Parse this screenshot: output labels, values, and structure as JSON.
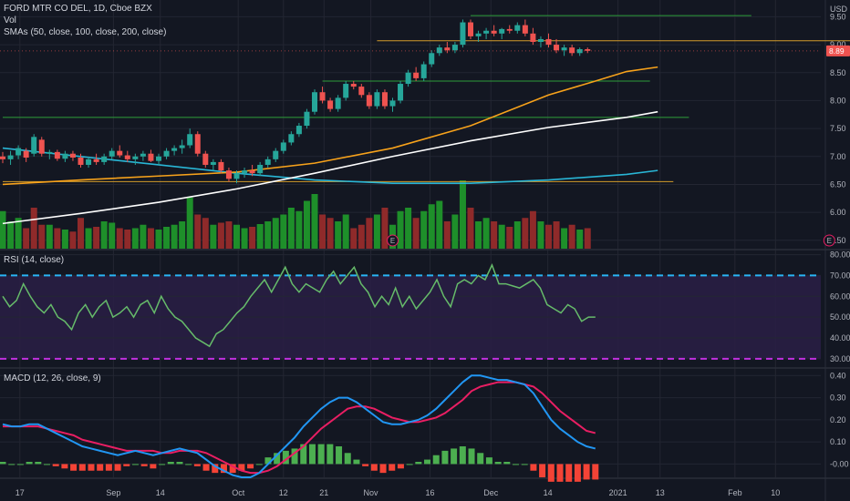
{
  "header": {
    "title": "FORD MTR CO DEL, 1D, Cboe BZX",
    "vol_label": "Vol",
    "sma_label": "SMAs (50, close, 100, close, 200, close)",
    "currency": "USD",
    "last_price": "8.89"
  },
  "panes": {
    "rsi_label": "RSI (14, close)",
    "macd_label": "MACD (12, 26, close, 9)"
  },
  "colors": {
    "background": "#131722",
    "grid": "#232632",
    "up": "#26a69a",
    "up_candle": "#26a69a",
    "down_candle": "#ef5350",
    "vol_up": "#1e8f2a",
    "vol_down": "#8f2a2a",
    "sma50": "#f7a21b",
    "sma100": "#ffffff",
    "sma200": "#29b6d6",
    "rsi_line": "#66bb6a",
    "rsi_band": "#2a1f45",
    "rsi_upper": "#29b6f6",
    "rsi_lower": "#c030e0",
    "macd_line": "#2196f3",
    "signal_line": "#e91e63",
    "hist_pos": "#4caf50",
    "hist_neg": "#f44336",
    "hline_green": "#2e9e3a",
    "hline_orange": "#d39b2a",
    "earnings": "#e91e63"
  },
  "chart_data": [
    {
      "type": "candlestick",
      "pane": "price",
      "title": "FORD MTR CO DEL, 1D, Cboe BZX",
      "x_tick_labels": [
        "17",
        "Sep",
        "14",
        "Oct",
        "12",
        "21",
        "Nov",
        "16",
        "Dec",
        "14",
        "2021",
        "13",
        "Feb",
        "10"
      ],
      "y_tick_labels": [
        "5.50",
        "6.00",
        "6.50",
        "7.00",
        "7.50",
        "8.00",
        "8.50",
        "9.00",
        "9.50"
      ],
      "ylim": [
        5.35,
        9.8
      ],
      "ohlc": [
        [
          7.0,
          7.08,
          6.88,
          6.95
        ],
        [
          6.95,
          7.1,
          6.85,
          7.02
        ],
        [
          7.02,
          7.2,
          6.95,
          7.15
        ],
        [
          7.1,
          7.15,
          6.9,
          6.98
        ],
        [
          7.05,
          7.4,
          7.0,
          7.35
        ],
        [
          7.3,
          7.35,
          7.0,
          7.05
        ],
        [
          7.05,
          7.12,
          6.95,
          7.08
        ],
        [
          7.08,
          7.12,
          6.92,
          6.96
        ],
        [
          6.96,
          7.1,
          6.9,
          7.05
        ],
        [
          7.05,
          7.1,
          6.92,
          6.98
        ],
        [
          6.98,
          7.05,
          6.8,
          6.85
        ],
        [
          6.85,
          7.0,
          6.8,
          6.95
        ],
        [
          6.95,
          7.05,
          6.85,
          6.9
        ],
        [
          6.9,
          7.05,
          6.85,
          7.0
        ],
        [
          7.0,
          7.15,
          6.95,
          7.1
        ],
        [
          7.1,
          7.2,
          6.98,
          7.02
        ],
        [
          7.02,
          7.1,
          6.9,
          6.95
        ],
        [
          6.95,
          7.05,
          6.85,
          7.0
        ],
        [
          7.0,
          7.1,
          6.92,
          7.05
        ],
        [
          7.05,
          7.12,
          6.9,
          6.92
        ],
        [
          6.92,
          7.05,
          6.85,
          7.0
        ],
        [
          7.0,
          7.15,
          6.95,
          7.1
        ],
        [
          7.1,
          7.2,
          7.02,
          7.15
        ],
        [
          7.15,
          7.3,
          7.05,
          7.2
        ],
        [
          7.2,
          7.5,
          7.15,
          7.4
        ],
        [
          7.4,
          7.45,
          7.0,
          7.05
        ],
        [
          7.05,
          7.1,
          6.8,
          6.85
        ],
        [
          6.85,
          6.95,
          6.75,
          6.9
        ],
        [
          6.9,
          6.95,
          6.7,
          6.75
        ],
        [
          6.75,
          6.8,
          6.55,
          6.6
        ],
        [
          6.6,
          6.75,
          6.52,
          6.7
        ],
        [
          6.7,
          6.8,
          6.62,
          6.75
        ],
        [
          6.75,
          6.85,
          6.65,
          6.7
        ],
        [
          6.7,
          6.9,
          6.65,
          6.85
        ],
        [
          6.85,
          7.0,
          6.8,
          6.95
        ],
        [
          6.95,
          7.15,
          6.9,
          7.1
        ],
        [
          7.1,
          7.3,
          7.05,
          7.25
        ],
        [
          7.25,
          7.45,
          7.2,
          7.4
        ],
        [
          7.4,
          7.6,
          7.35,
          7.55
        ],
        [
          7.55,
          7.85,
          7.5,
          7.8
        ],
        [
          7.8,
          8.2,
          7.75,
          8.15
        ],
        [
          8.15,
          8.25,
          7.95,
          8.0
        ],
        [
          8.0,
          8.05,
          7.8,
          7.85
        ],
        [
          7.85,
          8.1,
          7.8,
          8.05
        ],
        [
          8.05,
          8.35,
          8.0,
          8.3
        ],
        [
          8.3,
          8.35,
          8.2,
          8.25
        ],
        [
          8.25,
          8.3,
          8.05,
          8.1
        ],
        [
          8.1,
          8.15,
          7.85,
          7.9
        ],
        [
          7.9,
          8.2,
          7.85,
          8.15
        ],
        [
          8.15,
          8.2,
          7.85,
          7.9
        ],
        [
          7.9,
          8.05,
          7.8,
          8.0
        ],
        [
          8.0,
          8.35,
          7.95,
          8.3
        ],
        [
          8.3,
          8.55,
          8.25,
          8.5
        ],
        [
          8.5,
          8.6,
          8.35,
          8.4
        ],
        [
          8.4,
          8.7,
          8.35,
          8.65
        ],
        [
          8.65,
          8.9,
          8.6,
          8.85
        ],
        [
          8.85,
          9.0,
          8.8,
          8.95
        ],
        [
          8.95,
          9.05,
          8.85,
          8.9
        ],
        [
          8.9,
          9.05,
          8.85,
          9.0
        ],
        [
          9.0,
          9.45,
          8.95,
          9.4
        ],
        [
          9.4,
          9.45,
          9.1,
          9.15
        ],
        [
          9.15,
          9.25,
          9.05,
          9.2
        ],
        [
          9.2,
          9.3,
          9.1,
          9.25
        ],
        [
          9.25,
          9.35,
          9.15,
          9.2
        ],
        [
          9.2,
          9.3,
          9.1,
          9.28
        ],
        [
          9.28,
          9.35,
          9.2,
          9.25
        ],
        [
          9.25,
          9.4,
          9.2,
          9.35
        ],
        [
          9.35,
          9.45,
          9.15,
          9.2
        ],
        [
          9.2,
          9.3,
          9.0,
          9.05
        ],
        [
          9.05,
          9.15,
          8.95,
          9.1
        ],
        [
          9.1,
          9.2,
          8.95,
          9.0
        ],
        [
          9.0,
          9.1,
          8.85,
          8.9
        ],
        [
          8.9,
          9.0,
          8.8,
          8.95
        ],
        [
          8.95,
          9.0,
          8.8,
          8.85
        ],
        [
          8.85,
          8.95,
          8.8,
          8.92
        ],
        [
          8.92,
          8.95,
          8.85,
          8.89
        ]
      ],
      "volume": [
        [
          0.55,
          1
        ],
        [
          0.4,
          1
        ],
        [
          0.45,
          1
        ],
        [
          0.3,
          0
        ],
        [
          0.6,
          0
        ],
        [
          0.35,
          0
        ],
        [
          0.35,
          1
        ],
        [
          0.3,
          0
        ],
        [
          0.28,
          1
        ],
        [
          0.25,
          0
        ],
        [
          0.45,
          0
        ],
        [
          0.3,
          1
        ],
        [
          0.32,
          0
        ],
        [
          0.4,
          1
        ],
        [
          0.38,
          1
        ],
        [
          0.3,
          0
        ],
        [
          0.28,
          0
        ],
        [
          0.3,
          1
        ],
        [
          0.35,
          1
        ],
        [
          0.3,
          0
        ],
        [
          0.28,
          1
        ],
        [
          0.32,
          1
        ],
        [
          0.35,
          1
        ],
        [
          0.4,
          1
        ],
        [
          0.75,
          1
        ],
        [
          0.5,
          0
        ],
        [
          0.45,
          0
        ],
        [
          0.35,
          1
        ],
        [
          0.38,
          0
        ],
        [
          0.4,
          0
        ],
        [
          0.35,
          1
        ],
        [
          0.3,
          1
        ],
        [
          0.32,
          0
        ],
        [
          0.36,
          1
        ],
        [
          0.4,
          1
        ],
        [
          0.45,
          1
        ],
        [
          0.5,
          1
        ],
        [
          0.6,
          1
        ],
        [
          0.55,
          1
        ],
        [
          0.7,
          1
        ],
        [
          0.8,
          1
        ],
        [
          0.5,
          0
        ],
        [
          0.45,
          0
        ],
        [
          0.4,
          1
        ],
        [
          0.5,
          1
        ],
        [
          0.3,
          0
        ],
        [
          0.35,
          0
        ],
        [
          0.45,
          0
        ],
        [
          0.5,
          1
        ],
        [
          0.6,
          0
        ],
        [
          0.35,
          1
        ],
        [
          0.55,
          1
        ],
        [
          0.6,
          1
        ],
        [
          0.45,
          0
        ],
        [
          0.55,
          1
        ],
        [
          0.65,
          1
        ],
        [
          0.7,
          1
        ],
        [
          0.4,
          0
        ],
        [
          0.5,
          1
        ],
        [
          1.0,
          1
        ],
        [
          0.6,
          0
        ],
        [
          0.4,
          1
        ],
        [
          0.45,
          1
        ],
        [
          0.4,
          0
        ],
        [
          0.35,
          1
        ],
        [
          0.32,
          0
        ],
        [
          0.4,
          1
        ],
        [
          0.45,
          0
        ],
        [
          0.55,
          0
        ],
        [
          0.4,
          1
        ],
        [
          0.35,
          0
        ],
        [
          0.4,
          0
        ],
        [
          0.3,
          1
        ],
        [
          0.35,
          0
        ],
        [
          0.28,
          1
        ],
        [
          0.3,
          0
        ]
      ],
      "sma50": [
        [
          0,
          6.5
        ],
        [
          10,
          6.58
        ],
        [
          20,
          6.65
        ],
        [
          30,
          6.72
        ],
        [
          40,
          6.88
        ],
        [
          50,
          7.15
        ],
        [
          60,
          7.55
        ],
        [
          70,
          8.1
        ],
        [
          76,
          8.35
        ],
        [
          80,
          8.52
        ],
        [
          84,
          8.6
        ]
      ],
      "sma100": [
        [
          0,
          5.8
        ],
        [
          10,
          5.98
        ],
        [
          20,
          6.18
        ],
        [
          30,
          6.42
        ],
        [
          40,
          6.7
        ],
        [
          50,
          7.0
        ],
        [
          60,
          7.28
        ],
        [
          70,
          7.52
        ],
        [
          80,
          7.7
        ],
        [
          84,
          7.8
        ]
      ],
      "sma200": [
        [
          0,
          7.15
        ],
        [
          10,
          7.0
        ],
        [
          20,
          6.85
        ],
        [
          30,
          6.7
        ],
        [
          40,
          6.58
        ],
        [
          50,
          6.52
        ],
        [
          60,
          6.52
        ],
        [
          70,
          6.58
        ],
        [
          80,
          6.68
        ],
        [
          84,
          6.75
        ]
      ],
      "horizontal_lines": [
        {
          "level": 9.52,
          "from": 60,
          "to": 96,
          "color": "hline_green"
        },
        {
          "level": 9.07,
          "from": 48,
          "to": 114,
          "color": "hline_orange"
        },
        {
          "level": 8.35,
          "from": 41,
          "to": 83,
          "color": "hline_green"
        },
        {
          "level": 7.7,
          "from": 0,
          "to": 88,
          "color": "hline_green"
        },
        {
          "level": 6.55,
          "from": 0,
          "to": 86,
          "color": "hline_orange"
        }
      ],
      "earnings_markers": [
        {
          "index": 50,
          "label": "E"
        },
        {
          "index": 106,
          "label": "E"
        }
      ]
    },
    {
      "type": "line",
      "pane": "rsi",
      "title": "RSI (14, close)",
      "y_tick_labels": [
        "30.00",
        "40.00",
        "50.00",
        "60.00",
        "70.00",
        "80.00"
      ],
      "ylim": [
        26,
        82
      ],
      "upper_band": 70,
      "lower_band": 30,
      "values": [
        60,
        55,
        58,
        66,
        60,
        55,
        52,
        56,
        50,
        48,
        44,
        52,
        56,
        50,
        55,
        58,
        50,
        52,
        55,
        50,
        56,
        58,
        52,
        60,
        54,
        50,
        48,
        44,
        40,
        38,
        36,
        42,
        44,
        48,
        52,
        55,
        60,
        64,
        68,
        62,
        68,
        74,
        66,
        62,
        66,
        64,
        62,
        68,
        72,
        66,
        70,
        74,
        66,
        62,
        55,
        60,
        56,
        64,
        55,
        60,
        54,
        58,
        62,
        68,
        60,
        55,
        66,
        68,
        66,
        70,
        68,
        75,
        66,
        66,
        65,
        64,
        66,
        68,
        64,
        56,
        54,
        52,
        56,
        54,
        48,
        50,
        50
      ],
      "values_note": ""
    },
    {
      "type": "line",
      "pane": "macd",
      "title": "MACD (12, 26, close, 9)",
      "y_tick_labels": [
        "-0.00",
        "0.10",
        "0.20",
        "0.30",
        "0.40"
      ],
      "ylim": [
        -0.06,
        0.43
      ],
      "series": [
        {
          "name": "MACD",
          "values": [
            0.18,
            0.17,
            0.17,
            0.18,
            0.18,
            0.16,
            0.14,
            0.12,
            0.1,
            0.08,
            0.07,
            0.06,
            0.05,
            0.04,
            0.05,
            0.06,
            0.05,
            0.04,
            0.05,
            0.06,
            0.07,
            0.06,
            0.05,
            0.02,
            -0.01,
            -0.03,
            -0.05,
            -0.06,
            -0.06,
            -0.04,
            0.0,
            0.04,
            0.08,
            0.12,
            0.17,
            0.21,
            0.25,
            0.28,
            0.3,
            0.3,
            0.28,
            0.25,
            0.22,
            0.19,
            0.18,
            0.18,
            0.19,
            0.2,
            0.22,
            0.25,
            0.29,
            0.33,
            0.37,
            0.4,
            0.4,
            0.39,
            0.38,
            0.38,
            0.37,
            0.36,
            0.32,
            0.26,
            0.2,
            0.16,
            0.13,
            0.1,
            0.08,
            0.07
          ]
        },
        {
          "name": "Signal",
          "values": [
            0.17,
            0.17,
            0.17,
            0.17,
            0.17,
            0.16,
            0.15,
            0.14,
            0.13,
            0.11,
            0.1,
            0.09,
            0.08,
            0.07,
            0.06,
            0.06,
            0.06,
            0.06,
            0.05,
            0.05,
            0.06,
            0.06,
            0.06,
            0.05,
            0.03,
            0.01,
            -0.01,
            -0.03,
            -0.04,
            -0.04,
            -0.03,
            -0.01,
            0.02,
            0.05,
            0.08,
            0.12,
            0.16,
            0.19,
            0.22,
            0.25,
            0.26,
            0.26,
            0.25,
            0.23,
            0.21,
            0.2,
            0.19,
            0.19,
            0.2,
            0.21,
            0.23,
            0.26,
            0.29,
            0.33,
            0.35,
            0.36,
            0.37,
            0.37,
            0.37,
            0.36,
            0.35,
            0.32,
            0.28,
            0.24,
            0.21,
            0.18,
            0.15,
            0.14
          ]
        }
      ]
    }
  ],
  "macd_hist": [
    0.01,
    0.0,
    0.0,
    0.01,
    0.01,
    0.0,
    -0.01,
    -0.02,
    -0.03,
    -0.03,
    -0.03,
    -0.03,
    -0.03,
    -0.03,
    -0.01,
    0.0,
    -0.01,
    -0.02,
    0.0,
    0.01,
    0.01,
    0.0,
    -0.01,
    -0.03,
    -0.04,
    -0.04,
    -0.04,
    -0.03,
    -0.02,
    0.0,
    0.03,
    0.05,
    0.06,
    0.07,
    0.09,
    0.09,
    0.09,
    0.09,
    0.08,
    0.05,
    0.02,
    -0.01,
    -0.03,
    -0.04,
    -0.03,
    -0.02,
    0.0,
    0.01,
    0.02,
    0.04,
    0.06,
    0.07,
    0.08,
    0.07,
    0.05,
    0.03,
    0.01,
    0.01,
    0.0,
    0.0,
    -0.03,
    -0.06,
    -0.08,
    -0.08,
    -0.08,
    -0.08,
    -0.07,
    -0.07
  ]
}
